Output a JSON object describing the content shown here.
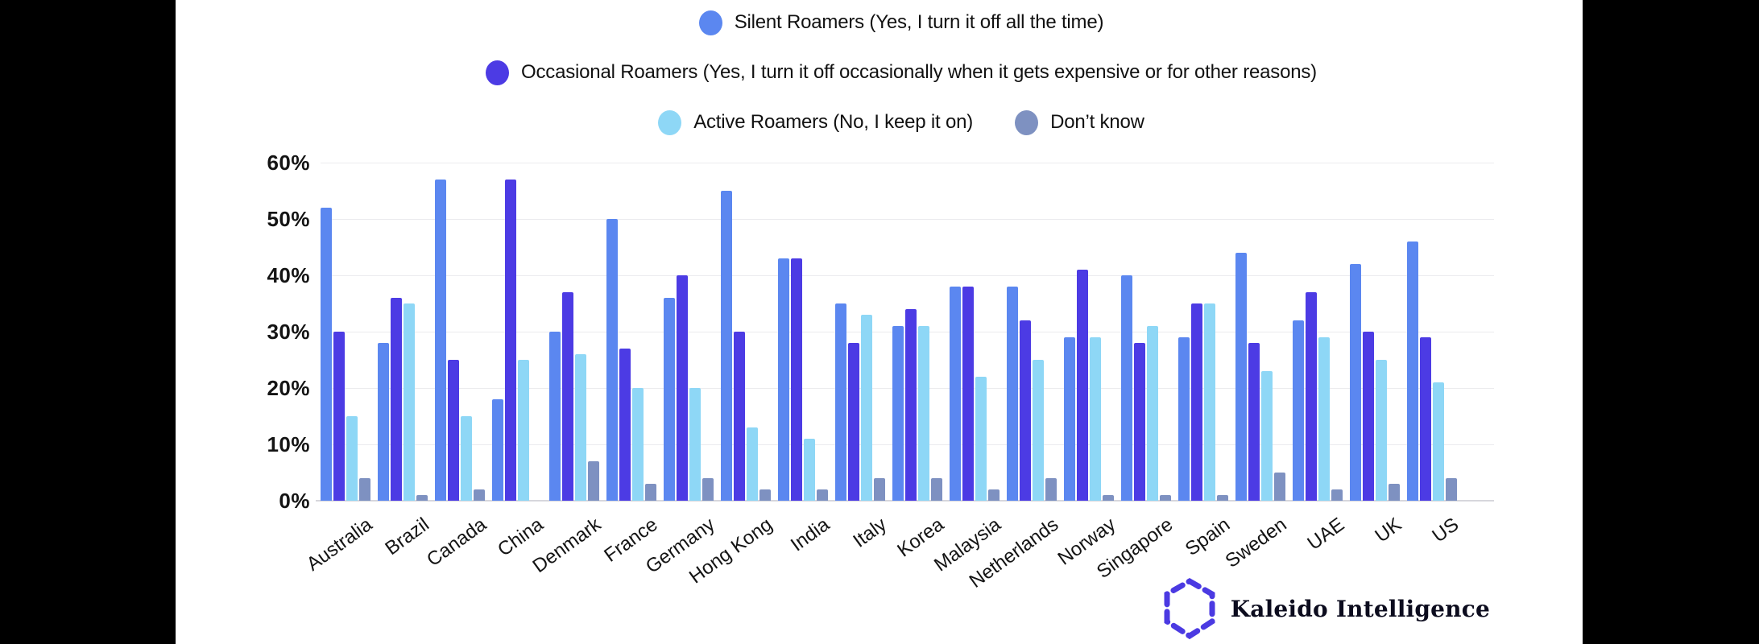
{
  "page": {
    "background": "#000000",
    "panel_background": "#ffffff"
  },
  "chart_data": {
    "type": "bar",
    "categories": [
      "Australia",
      "Brazil",
      "Canada",
      "China",
      "Denmark",
      "France",
      "Germany",
      "Hong Kong",
      "India",
      "Italy",
      "Korea",
      "Malaysia",
      "Netherlands",
      "Norway",
      "Singapore",
      "Spain",
      "Sweden",
      "UAE",
      "UK",
      "US"
    ],
    "series": [
      {
        "name": "Silent Roamers (Yes, I turn it off all the time)",
        "color": "#5b87f0",
        "values": [
          52,
          28,
          57,
          18,
          30,
          50,
          36,
          55,
          43,
          35,
          31,
          38,
          38,
          29,
          40,
          29,
          44,
          32,
          42,
          46
        ]
      },
      {
        "name": "Occasional Roamers (Yes, I turn it off occasionally when it gets expensive or for other reasons)",
        "color": "#4c3be4",
        "values": [
          30,
          36,
          25,
          57,
          37,
          27,
          40,
          30,
          43,
          28,
          34,
          38,
          32,
          41,
          28,
          35,
          28,
          37,
          30,
          29
        ]
      },
      {
        "name": "Active Roamers (No, I keep it on)",
        "color": "#8ed7f6",
        "values": [
          15,
          35,
          15,
          25,
          26,
          20,
          20,
          13,
          11,
          33,
          31,
          22,
          25,
          29,
          31,
          35,
          23,
          29,
          25,
          21
        ]
      },
      {
        "name": "Don’t know",
        "color": "#7e91c1",
        "values": [
          4,
          1,
          2,
          0,
          7,
          3,
          4,
          2,
          2,
          4,
          4,
          2,
          4,
          1,
          1,
          1,
          5,
          2,
          3,
          4
        ]
      }
    ],
    "y_axis": {
      "min": 0,
      "max": 60,
      "step": 10,
      "tick_labels": [
        "0%",
        "10%",
        "20%",
        "30%",
        "40%",
        "50%",
        "60%"
      ]
    },
    "grid": "horizontal",
    "legend_position": "top"
  },
  "branding": {
    "logo_text": "Kaleido Intelligence",
    "logo_hexagon_color": "#4b3ae2"
  }
}
